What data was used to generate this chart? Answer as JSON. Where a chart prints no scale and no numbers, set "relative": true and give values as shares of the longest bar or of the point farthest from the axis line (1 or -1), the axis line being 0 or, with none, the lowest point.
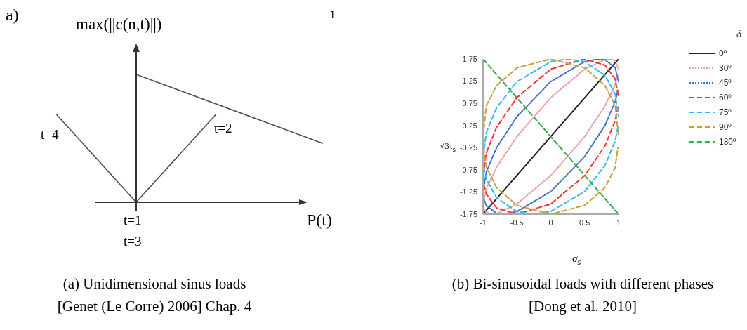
{
  "chart_data": [
    {
      "type": "line",
      "relative": true,
      "xlabel": "P(t)",
      "ylabel": "max(||c(n,t)||)",
      "tick_labels": false,
      "categories": [
        null,
        null,
        null,
        null,
        null,
        null,
        null,
        null,
        null,
        null,
        null
      ],
      "series": [
        {
          "color": "#4d4d4d",
          "values": [
            0.69,
            null,
            null,
            0,
            null,
            null,
            null,
            null,
            null,
            null,
            null
          ]
        },
        {
          "color": "#4d4d4d",
          "values": [
            null,
            null,
            null,
            0,
            null,
            null,
            0.69,
            null,
            null,
            null,
            null
          ]
        },
        {
          "color": "#4d4d4d",
          "values": [
            null,
            null,
            null,
            1,
            null,
            null,
            null,
            null,
            null,
            null,
            0.46
          ]
        }
      ],
      "annotations": [
        "a)",
        "1",
        "t=4",
        "t=2",
        "t=1",
        "t=3",
        "(a) Unidimensional sinus loads [Genet (Le Corre) 2006] Chap. 4"
      ]
    },
    {
      "type": "line",
      "xlabel": "σ$_{s}$",
      "ylabel": "√3τ$_{s}$",
      "legend_title": "δ",
      "legend": "right",
      "xlim": [
        -1,
        1
      ],
      "xticks": [
        -1,
        -0.5,
        0,
        0.5,
        1
      ],
      "ylim": [
        -1.75,
        1.75
      ],
      "yticks": [
        -1.75,
        -1.25,
        -0.75,
        -0.25,
        0.25,
        0.75,
        1.25,
        1.75
      ],
      "series": [
        {
          "name": "0º",
          "color": "#222222",
          "line_style": "solid",
          "x": [
            -1,
            1
          ],
          "values": [
            -1.75,
            1.75
          ]
        },
        {
          "name": "30º",
          "color": "#e8a0a0",
          "line_style": "dotted",
          "x": [
            -1,
            -0.95,
            -0.8,
            -0.5,
            0,
            0.5,
            0.8,
            0.866,
            0.95,
            1
          ],
          "values": [
            -1.52,
            -1.17,
            -0.69,
            0,
            0.88,
            1.52,
            1.74,
            1.75,
            1.71,
            1.52
          ]
        },
        {
          "color": "#e8a0a0",
          "line_style": "dotted",
          "x": [
            -0.99,
            -0.95,
            -0.866,
            -0.8,
            -0.5,
            0,
            0.5,
            0.8,
            0.95,
            0.99
          ],
          "values": [
            -1.62,
            -1.71,
            -1.75,
            -1.74,
            -1.52,
            -0.88,
            0,
            0.69,
            1.17,
            1.38
          ]
        },
        {
          "name": "45º",
          "color": "#3a6fc4",
          "line_style": "dotted",
          "x": [
            -1,
            -0.95,
            -0.8,
            -0.5,
            0,
            0.5,
            0.707,
            0.8,
            0.95,
            1
          ],
          "values": [
            -1.24,
            -0.79,
            -0.25,
            0.45,
            1.24,
            1.69,
            1.75,
            1.73,
            1.56,
            1.24
          ]
        },
        {
          "color": "#3a6fc4",
          "line_style": "dotted",
          "x": [
            -0.99,
            -0.95,
            -0.8,
            -0.707,
            -0.5,
            0,
            0.5,
            0.8,
            0.95,
            0.99
          ],
          "values": [
            -1.4,
            -1.56,
            -1.73,
            -1.75,
            -1.69,
            -1.24,
            -0.45,
            0.25,
            0.79,
            1.05
          ]
        },
        {
          "name": "60º",
          "color": "#ff3030",
          "line_style": "dashed",
          "x": [
            -1,
            -0.95,
            -0.8,
            -0.5,
            0,
            0.5,
            0.8,
            0.95,
            1
          ],
          "values": [
            -0.88,
            -0.36,
            0.21,
            0.88,
            1.52,
            1.75,
            1.61,
            1.3,
            0.88
          ]
        },
        {
          "color": "#ff3030",
          "line_style": "dashed",
          "x": [
            -0.99,
            -0.95,
            -0.8,
            -0.5,
            0,
            0.5,
            0.8,
            0.95,
            0.99
          ],
          "values": [
            -1.08,
            -1.3,
            -1.61,
            -1.75,
            -1.52,
            -0.88,
            -0.21,
            0.36,
            0.65
          ]
        },
        {
          "name": "75º",
          "color": "#33bbee",
          "line_style": "dashed",
          "x": [
            -1,
            -0.95,
            -0.8,
            -0.5,
            0,
            0.25,
            0.5,
            0.8,
            0.95,
            1
          ],
          "values": [
            -0.45,
            0.1,
            0.65,
            1.24,
            1.69,
            1.75,
            1.69,
            1.38,
            0.96,
            0.45
          ]
        },
        {
          "color": "#33bbee",
          "line_style": "dashed",
          "x": [
            -0.99,
            -0.95,
            -0.8,
            -0.5,
            -0.25,
            0,
            0.5,
            0.8,
            0.95,
            0.99
          ],
          "values": [
            -0.69,
            -0.96,
            -1.38,
            -1.69,
            -1.75,
            -1.69,
            -1.24,
            -0.65,
            -0.1,
            0.21
          ]
        },
        {
          "name": "90º",
          "color": "#c8a040",
          "line_style": "dashed",
          "x": [
            -1,
            -0.95,
            -0.8,
            -0.5,
            0,
            0.5,
            0.8,
            0.95,
            1
          ],
          "values": [
            0,
            0.7,
            1.15,
            1.55,
            1.75,
            1.55,
            1.15,
            0.7,
            0
          ]
        },
        {
          "color": "#c8a040",
          "line_style": "dashed",
          "x": [
            -0.99,
            -0.95,
            -0.8,
            -0.5,
            0,
            0.5,
            0.8,
            0.95,
            0.99
          ],
          "values": [
            -0.25,
            -0.7,
            -1.15,
            -1.55,
            -1.75,
            -1.55,
            -1.15,
            -0.7,
            -0.25
          ]
        },
        {
          "name": "180º",
          "color": "#33aa44",
          "line_style": "dashed",
          "x": [
            -1,
            1
          ],
          "values": [
            1.75,
            -1.75
          ]
        }
      ],
      "annotations": [
        "(b) Bi-sinusoidal loads with different phases [Dong et al. 2010]"
      ]
    }
  ]
}
